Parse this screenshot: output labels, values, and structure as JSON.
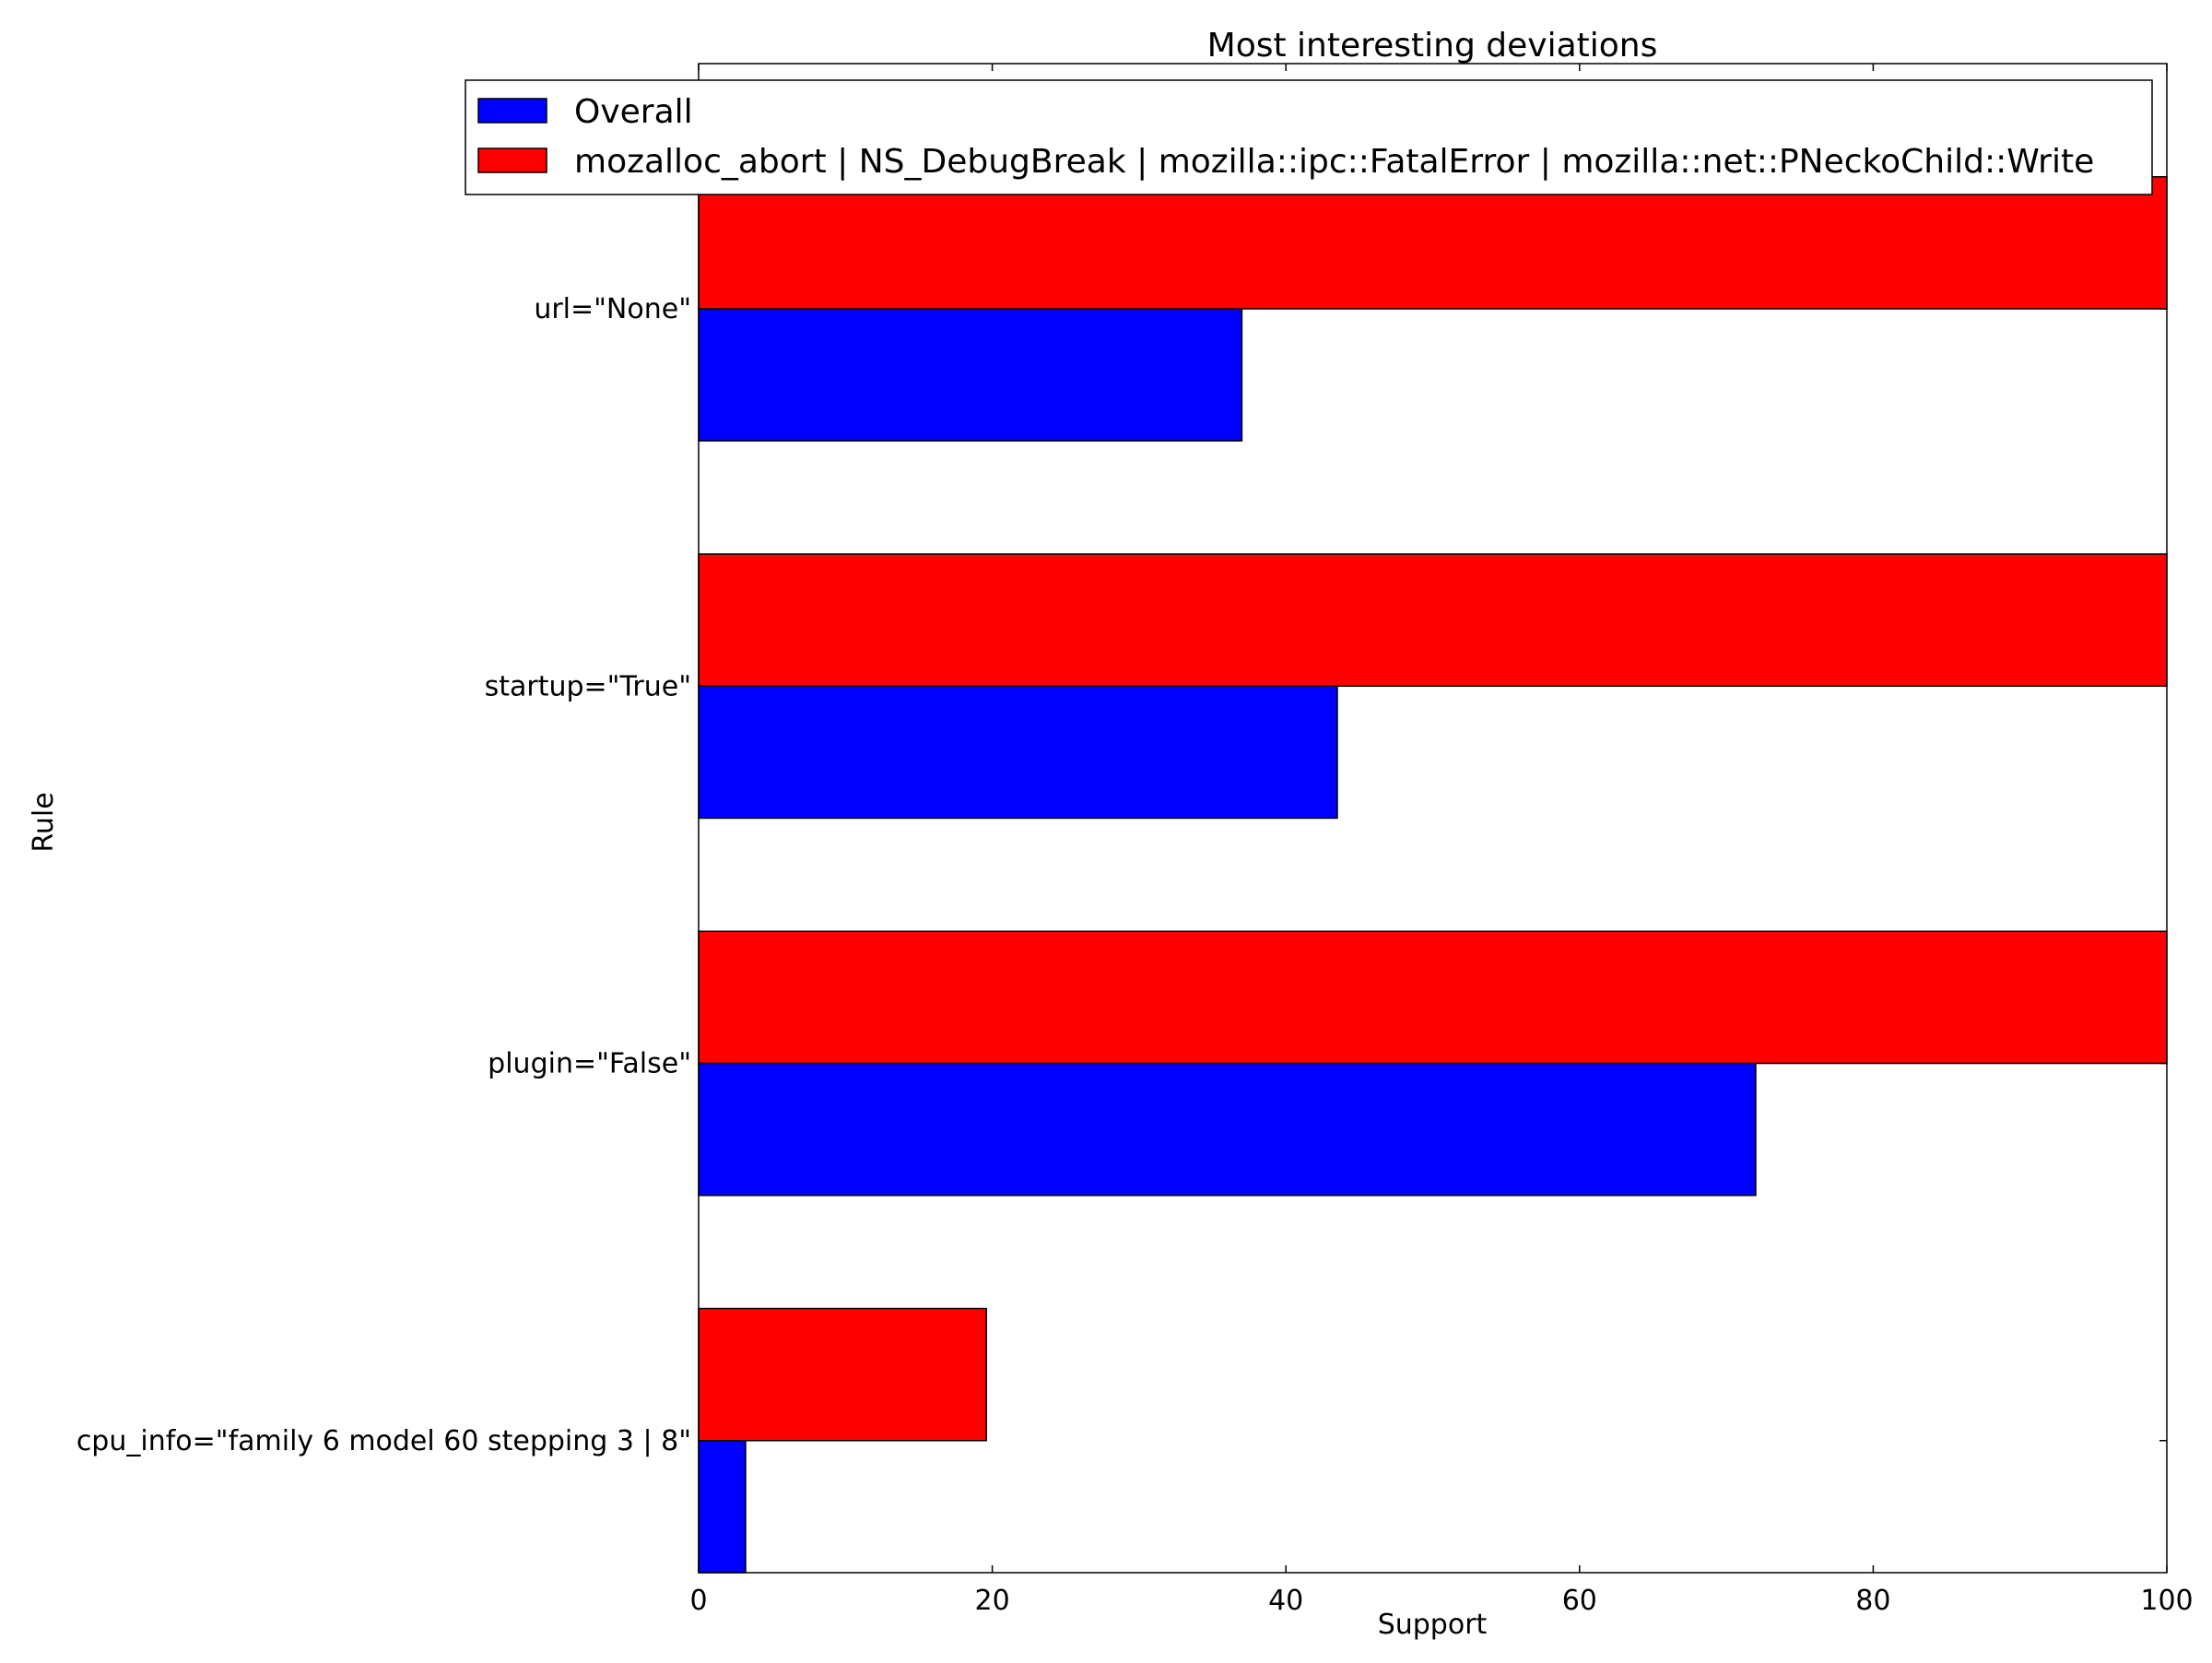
{
  "chart_data": {
    "type": "bar",
    "orientation": "horizontal",
    "title": "Most interesting deviations",
    "xlabel": "Support",
    "ylabel": "Rule",
    "xlim": [
      0,
      100
    ],
    "xticks": [
      "0",
      "20",
      "40",
      "60",
      "80",
      "100"
    ],
    "xtick_values": [
      0,
      20,
      40,
      60,
      80,
      100
    ],
    "grid": false,
    "legend_position": "top",
    "categories": [
      "url=\"None\"",
      "startup=\"True\"",
      "plugin=\"False\"",
      "cpu_info=\"family 6 model 60 stepping 3 | 8\""
    ],
    "series": [
      {
        "name": "Overall",
        "color": "#0000ff",
        "values": [
          37,
          43.5,
          72,
          3.2
        ]
      },
      {
        "name": "mozalloc_abort | NS_DebugBreak | mozilla::ipc::FatalError | mozilla::net::PNeckoChild::Write",
        "color": "#ff0000",
        "values": [
          100,
          100,
          100,
          19.6
        ]
      }
    ]
  }
}
